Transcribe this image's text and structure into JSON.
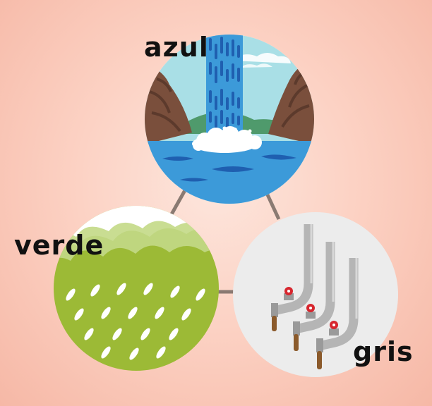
{
  "labels": {
    "blue": "azul",
    "green": "verde",
    "grey": "gris"
  },
  "icons": {
    "blue": "waterfall-icon",
    "green": "rain-cloud-icon",
    "grey": "pipes-faucets-icon"
  },
  "colors": {
    "background": "#fcd2c4",
    "connector": "#8a7a72",
    "water": "#3c9ad9",
    "rain_field": "#9cba36",
    "grey_circle": "#ececec",
    "pipe": "#b5b5b5",
    "valve": "#d7262e",
    "wastewater": "#8b5a2b",
    "rock": "#7a4f3c"
  }
}
